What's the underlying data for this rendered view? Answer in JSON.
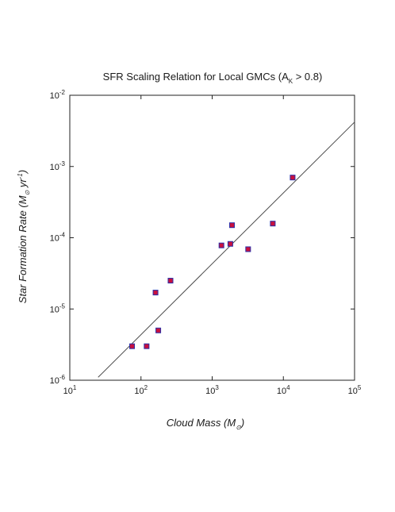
{
  "chart_data": {
    "type": "scatter",
    "title": "SFR Scaling Relation for Local GMCs (A",
    "title_sub": "K",
    "title_tail": " > 0.8)",
    "xlabel": "Cloud Mass (M",
    "xlabel_sub": "⊙",
    "xlabel_tail": ")",
    "ylabel": "Star Formation Rate (M",
    "ylabel_sub": "⊙",
    "ylabel_mid": " yr",
    "ylabel_sup": "-1",
    "ylabel_tail": ")",
    "x_scale": "log",
    "y_scale": "log",
    "xlim": [
      10,
      100000
    ],
    "ylim": [
      1e-06,
      0.01
    ],
    "x_ticks": [
      {
        "base": "10",
        "exp": "1",
        "value": 10
      },
      {
        "base": "10",
        "exp": "2",
        "value": 100
      },
      {
        "base": "10",
        "exp": "3",
        "value": 1000
      },
      {
        "base": "10",
        "exp": "4",
        "value": 10000
      },
      {
        "base": "10",
        "exp": "5",
        "value": 100000
      }
    ],
    "y_ticks": [
      {
        "base": "10",
        "exp": "-6",
        "value": 1e-06
      },
      {
        "base": "10",
        "exp": "-5",
        "value": 1e-05
      },
      {
        "base": "10",
        "exp": "-4",
        "value": 0.0001
      },
      {
        "base": "10",
        "exp": "-3",
        "value": 0.001
      },
      {
        "base": "10",
        "exp": "-2",
        "value": 0.01
      }
    ],
    "grid": false,
    "series": [
      {
        "marker": "square",
        "fill_color": "#c8103e",
        "edge_color": "#2b2fa8",
        "points": [
          {
            "x": 75,
            "y": 3e-06
          },
          {
            "x": 120,
            "y": 3e-06
          },
          {
            "x": 160,
            "y": 1.7e-05
          },
          {
            "x": 175,
            "y": 5e-06
          },
          {
            "x": 260,
            "y": 2.5e-05
          },
          {
            "x": 1350,
            "y": 7.8e-05
          },
          {
            "x": 1800,
            "y": 8.2e-05
          },
          {
            "x": 1900,
            "y": 0.00015
          },
          {
            "x": 3200,
            "y": 6.9e-05
          },
          {
            "x": 7100,
            "y": 0.000158
          },
          {
            "x": 13500,
            "y": 0.0007
          }
        ]
      }
    ],
    "fit_line": {
      "color": "#4a4a4a",
      "points": [
        {
          "x": 25,
          "y": 1.1e-06
        },
        {
          "x": 100000,
          "y": 0.0042
        }
      ]
    }
  }
}
